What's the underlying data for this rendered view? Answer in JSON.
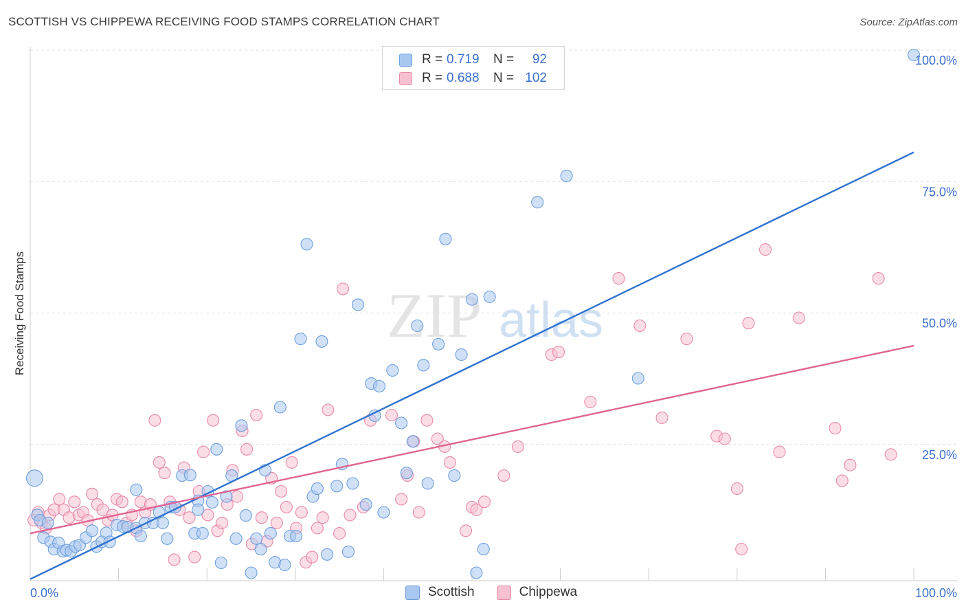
{
  "header": {
    "title": "SCOTTISH VS CHIPPEWA RECEIVING FOOD STAMPS CORRELATION CHART",
    "source": "Source: ZipAtlas.com"
  },
  "watermark": {
    "zip": "ZIP",
    "atlas": "atlas"
  },
  "legend_top": {
    "rows": [
      {
        "r_label": "R =",
        "r_value": "0.719",
        "n_label": "N =",
        "n_value": "92"
      },
      {
        "r_label": "R =",
        "r_value": "0.688",
        "n_label": "N =",
        "n_value": "102"
      }
    ]
  },
  "legend_bottom": {
    "items": [
      "Scottish",
      "Chippewa"
    ]
  },
  "colors": {
    "scottish_fill": "#a9c8f0",
    "scottish_stroke": "#6f9fdc",
    "scottish_line": "#2f72cf",
    "chippewa_fill": "#f7c1d2",
    "chippewa_stroke": "#e88aa9",
    "chippewa_line": "#e06492",
    "axis_label": "#3b6fcf",
    "grid": "#dddddd"
  },
  "chart_data": {
    "type": "scatter",
    "title": "SCOTTISH VS CHIPPEWA RECEIVING FOOD STAMPS CORRELATION CHART",
    "xlabel": "",
    "ylabel": "Receiving Food Stamps",
    "xlim": [
      0,
      100
    ],
    "ylim": [
      0,
      100
    ],
    "x_tick_labels": [
      "0.0%",
      "100.0%"
    ],
    "y_tick_labels": [
      "25.0%",
      "50.0%",
      "75.0%",
      "100.0%"
    ],
    "y_ticks": [
      25,
      50,
      75,
      100
    ],
    "grid": true,
    "legend_position": "top-center",
    "series": [
      {
        "name": "Scottish",
        "r": 0.719,
        "n": 92,
        "trend": {
          "x": [
            0,
            100
          ],
          "y": [
            0.3,
            81.5
          ]
        },
        "points": [
          [
            0.5,
            19.5
          ],
          [
            0.8,
            12.5
          ],
          [
            1.1,
            11.5
          ],
          [
            1.5,
            8.2
          ],
          [
            2.0,
            11.0
          ],
          [
            2.3,
            7.4
          ],
          [
            2.7,
            6.0
          ],
          [
            3.2,
            7.2
          ],
          [
            3.7,
            5.6
          ],
          [
            4.1,
            5.8
          ],
          [
            4.6,
            5.6
          ],
          [
            5.1,
            6.5
          ],
          [
            5.6,
            6.8
          ],
          [
            6.3,
            8.2
          ],
          [
            7.0,
            9.5
          ],
          [
            7.5,
            6.5
          ],
          [
            8.1,
            7.4
          ],
          [
            8.6,
            9.1
          ],
          [
            9.0,
            7.4
          ],
          [
            9.8,
            10.6
          ],
          [
            10.5,
            10.3
          ],
          [
            11.0,
            10.2
          ],
          [
            12.0,
            10.0
          ],
          [
            12.5,
            8.5
          ],
          [
            13.0,
            11.0
          ],
          [
            13.9,
            11.0
          ],
          [
            14.6,
            13.0
          ],
          [
            15.0,
            11.0
          ],
          [
            15.5,
            8.0
          ],
          [
            15.9,
            14.0
          ],
          [
            16.4,
            14.0
          ],
          [
            17.2,
            20.0
          ],
          [
            18.1,
            20.1
          ],
          [
            18.6,
            9.0
          ],
          [
            19.0,
            15.2
          ],
          [
            19.5,
            9.0
          ],
          [
            20.1,
            17.0
          ],
          [
            20.6,
            14.9
          ],
          [
            21.1,
            25.0
          ],
          [
            21.6,
            3.4
          ],
          [
            22.2,
            16.0
          ],
          [
            22.8,
            20.0
          ],
          [
            23.3,
            8.0
          ],
          [
            23.9,
            29.5
          ],
          [
            24.4,
            12.4
          ],
          [
            25.0,
            1.5
          ],
          [
            25.6,
            8.0
          ],
          [
            26.1,
            6.0
          ],
          [
            26.6,
            21.0
          ],
          [
            27.2,
            9.0
          ],
          [
            27.7,
            3.5
          ],
          [
            28.3,
            33.0
          ],
          [
            28.8,
            3.0
          ],
          [
            29.4,
            8.5
          ],
          [
            30.1,
            8.5
          ],
          [
            30.6,
            46.0
          ],
          [
            31.3,
            64.0
          ],
          [
            32.0,
            16.0
          ],
          [
            32.5,
            17.5
          ],
          [
            33.0,
            45.5
          ],
          [
            33.6,
            5.0
          ],
          [
            34.7,
            18.0
          ],
          [
            35.3,
            22.2
          ],
          [
            36.0,
            5.5
          ],
          [
            36.5,
            18.5
          ],
          [
            37.1,
            52.5
          ],
          [
            38.0,
            14.5
          ],
          [
            38.6,
            37.5
          ],
          [
            39.0,
            31.4
          ],
          [
            39.5,
            37.0
          ],
          [
            40.0,
            13.0
          ],
          [
            41.0,
            40.0
          ],
          [
            42.0,
            30.0
          ],
          [
            42.6,
            20.5
          ],
          [
            43.3,
            26.5
          ],
          [
            43.8,
            48.5
          ],
          [
            44.5,
            41.0
          ],
          [
            45.0,
            18.5
          ],
          [
            46.2,
            45.0
          ],
          [
            47.0,
            65.0
          ],
          [
            48.0,
            20.0
          ],
          [
            48.8,
            43.0
          ],
          [
            50.0,
            53.5
          ],
          [
            50.5,
            1.5
          ],
          [
            51.3,
            6.0
          ],
          [
            52.0,
            54.0
          ],
          [
            57.4,
            72.0
          ],
          [
            60.7,
            77.0
          ],
          [
            68.8,
            38.5
          ],
          [
            100.0,
            100.0
          ],
          [
            12.0,
            17.3
          ],
          [
            19.0,
            13.5
          ]
        ]
      },
      {
        "name": "Chippewa",
        "r": 0.688,
        "n": 102,
        "trend": {
          "x": [
            0,
            100
          ],
          "y": [
            9.0,
            44.7
          ]
        },
        "points": [
          [
            0.4,
            11.5
          ],
          [
            0.9,
            13.0
          ],
          [
            1.3,
            11.0
          ],
          [
            1.8,
            10.0
          ],
          [
            2.2,
            12.5
          ],
          [
            2.7,
            13.5
          ],
          [
            3.3,
            15.5
          ],
          [
            3.8,
            13.5
          ],
          [
            4.4,
            12.0
          ],
          [
            5.0,
            15.0
          ],
          [
            5.5,
            12.5
          ],
          [
            6.0,
            13.0
          ],
          [
            6.5,
            11.5
          ],
          [
            7.0,
            16.5
          ],
          [
            7.6,
            14.5
          ],
          [
            8.2,
            13.5
          ],
          [
            8.8,
            11.5
          ],
          [
            9.3,
            12.5
          ],
          [
            9.8,
            15.5
          ],
          [
            10.4,
            15.0
          ],
          [
            10.9,
            11.0
          ],
          [
            11.5,
            12.5
          ],
          [
            12.0,
            9.5
          ],
          [
            12.5,
            15.0
          ],
          [
            13.0,
            13.0
          ],
          [
            13.6,
            14.5
          ],
          [
            14.1,
            30.5
          ],
          [
            14.6,
            22.5
          ],
          [
            15.2,
            20.5
          ],
          [
            15.8,
            15.0
          ],
          [
            16.3,
            4.0
          ],
          [
            16.9,
            13.5
          ],
          [
            17.4,
            21.5
          ],
          [
            18.0,
            12.0
          ],
          [
            18.6,
            4.5
          ],
          [
            19.1,
            17.0
          ],
          [
            19.6,
            24.5
          ],
          [
            20.1,
            12.5
          ],
          [
            20.7,
            30.5
          ],
          [
            21.2,
            9.5
          ],
          [
            21.7,
            11.0
          ],
          [
            22.3,
            14.5
          ],
          [
            22.9,
            21.0
          ],
          [
            23.4,
            16.0
          ],
          [
            24.0,
            28.5
          ],
          [
            24.5,
            25.0
          ],
          [
            25.1,
            7.0
          ],
          [
            25.6,
            31.5
          ],
          [
            26.2,
            12.0
          ],
          [
            26.8,
            7.5
          ],
          [
            27.3,
            19.5
          ],
          [
            27.9,
            11.0
          ],
          [
            28.4,
            17.0
          ],
          [
            29.0,
            14.0
          ],
          [
            29.6,
            22.5
          ],
          [
            30.1,
            10.0
          ],
          [
            30.7,
            13.0
          ],
          [
            31.2,
            3.5
          ],
          [
            31.9,
            4.5
          ],
          [
            32.5,
            10.0
          ],
          [
            33.1,
            12.0
          ],
          [
            33.7,
            32.5
          ],
          [
            35.0,
            9.0
          ],
          [
            35.4,
            55.5
          ],
          [
            36.2,
            12.5
          ],
          [
            37.7,
            14.0
          ],
          [
            38.5,
            30.5
          ],
          [
            40.9,
            31.5
          ],
          [
            42.0,
            15.5
          ],
          [
            42.7,
            20.0
          ],
          [
            43.4,
            26.5
          ],
          [
            44.0,
            13.0
          ],
          [
            44.9,
            30.5
          ],
          [
            46.1,
            27.0
          ],
          [
            46.9,
            25.5
          ],
          [
            47.5,
            22.5
          ],
          [
            49.3,
            9.5
          ],
          [
            50.0,
            14.0
          ],
          [
            50.5,
            13.5
          ],
          [
            51.4,
            15.0
          ],
          [
            53.6,
            20.0
          ],
          [
            55.2,
            25.5
          ],
          [
            59.0,
            43.0
          ],
          [
            59.8,
            43.5
          ],
          [
            63.4,
            34.0
          ],
          [
            66.6,
            57.5
          ],
          [
            69.0,
            48.5
          ],
          [
            71.5,
            31.0
          ],
          [
            74.3,
            46.0
          ],
          [
            77.7,
            27.5
          ],
          [
            78.6,
            27.0
          ],
          [
            80.0,
            17.5
          ],
          [
            80.5,
            6.0
          ],
          [
            81.3,
            49.0
          ],
          [
            83.2,
            63.0
          ],
          [
            84.8,
            24.5
          ],
          [
            87.0,
            50.0
          ],
          [
            91.1,
            29.0
          ],
          [
            91.9,
            19.0
          ],
          [
            92.8,
            22.0
          ],
          [
            96.0,
            57.5
          ],
          [
            97.4,
            24.0
          ]
        ]
      }
    ]
  }
}
